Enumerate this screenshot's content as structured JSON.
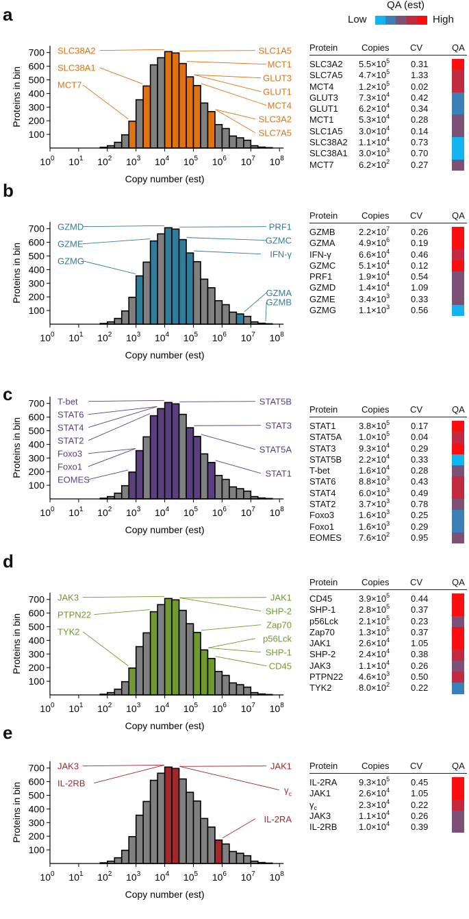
{
  "legend": {
    "title": "QA (est)",
    "low": "Low",
    "high": "High",
    "scale_colors": [
      "#12b3ee",
      "#3d80b8",
      "#7b5276",
      "#c12a3f",
      "#fb0d10"
    ]
  },
  "table_headers": [
    "Protein",
    "Copies",
    "CV",
    "QA"
  ],
  "chart_data": [
    {
      "panel": "a",
      "type": "bar",
      "color": "#e0730f",
      "xlabel": "Copy number (est)",
      "ylabel": "Proteins in bin",
      "x_scale": "log10",
      "xlim": [
        1,
        100000000
      ],
      "ylim": [
        0,
        750
      ],
      "yticks": [
        100,
        200,
        300,
        400,
        500,
        600,
        700
      ],
      "xtick_base": "10",
      "xtick_exponents": [
        "0",
        "1",
        "2",
        "3",
        "4",
        "5",
        "6",
        "7",
        "8"
      ],
      "bin_start_exponent": [
        1.75,
        2,
        2.25,
        2.5,
        2.75,
        3,
        3.25,
        3.5,
        3.75,
        4,
        4.25,
        4.5,
        4.75,
        5,
        5.25,
        5.5,
        5.75,
        6,
        6.25,
        6.5,
        6.75,
        7,
        7.25,
        7.5
      ],
      "counts": [
        5,
        17,
        42,
        97,
        197,
        354,
        455,
        610,
        662,
        707,
        697,
        620,
        522,
        458,
        330,
        267,
        172,
        143,
        88,
        75,
        57,
        17,
        7,
        3
      ],
      "table": [
        {
          "protein": "SLC3A2",
          "m": "5.5×10",
          "e": "5",
          "copies": 550000,
          "cv": "0.31",
          "qa": 5
        },
        {
          "protein": "SLC7A5",
          "m": "4.7×10",
          "e": "5",
          "copies": 470000,
          "cv": "1.33",
          "qa": 4
        },
        {
          "protein": "MCT4",
          "m": "1.2×10",
          "e": "5",
          "copies": 120000,
          "cv": "0.02",
          "qa": 4
        },
        {
          "protein": "GLUT3",
          "m": "7.3×10",
          "e": "4",
          "copies": 73000,
          "cv": "0.42",
          "qa": 2
        },
        {
          "protein": "GLUT1",
          "m": "6.2×10",
          "e": "4",
          "copies": 62000,
          "cv": "0.34",
          "qa": 2
        },
        {
          "protein": "MCT1",
          "m": "5.3×10",
          "e": "4",
          "copies": 53000,
          "cv": "0.28",
          "qa": 3
        },
        {
          "protein": "SLC1A5",
          "m": "3.0×10",
          "e": "4",
          "copies": 30000,
          "cv": "0.14",
          "qa": 3
        },
        {
          "protein": "SLC38A2",
          "m": "1.1×10",
          "e": "4",
          "copies": 11000,
          "cv": "0.73",
          "qa": 1
        },
        {
          "protein": "SLC38A1",
          "m": "3.0×10",
          "e": "3",
          "copies": 3000,
          "cv": "0.70",
          "qa": 1
        },
        {
          "protein": "MCT7",
          "m": "6.2×10",
          "e": "2",
          "copies": 620,
          "cv": "0.27",
          "qa": 3
        }
      ],
      "callouts": {
        "left": [
          7,
          8,
          9
        ],
        "right": [
          6,
          5,
          3,
          4,
          2,
          0,
          1
        ]
      }
    },
    {
      "panel": "b",
      "type": "bar",
      "color": "#2f7f9c",
      "xlabel": "Copy number (est)",
      "ylabel": "Proteins in bin",
      "x_scale": "log10",
      "xlim": [
        1,
        100000000
      ],
      "ylim": [
        0,
        750
      ],
      "yticks": [
        100,
        200,
        300,
        400,
        500,
        600,
        700
      ],
      "xtick_base": "10",
      "xtick_exponents": [
        "0",
        "1",
        "2",
        "3",
        "4",
        "5",
        "6",
        "7",
        "8"
      ],
      "bin_start_exponent": [
        1.75,
        2,
        2.25,
        2.5,
        2.75,
        3,
        3.25,
        3.5,
        3.75,
        4,
        4.25,
        4.5,
        4.75,
        5,
        5.25,
        5.5,
        5.75,
        6,
        6.25,
        6.5,
        6.75,
        7,
        7.25,
        7.5
      ],
      "counts": [
        5,
        17,
        42,
        97,
        197,
        354,
        455,
        610,
        662,
        707,
        697,
        620,
        522,
        458,
        330,
        267,
        172,
        143,
        88,
        75,
        57,
        17,
        7,
        3
      ],
      "table": [
        {
          "protein": "GZMB",
          "m": "2.2×10",
          "e": "7",
          "copies": 22000000,
          "cv": "0.26",
          "qa": 5
        },
        {
          "protein": "GZMA",
          "m": "4.9×10",
          "e": "6",
          "copies": 4900000,
          "cv": "0.19",
          "qa": 5
        },
        {
          "protein": "IFN-γ",
          "m": "6.6×10",
          "e": "4",
          "copies": 66000,
          "cv": "0.46",
          "qa": 4
        },
        {
          "protein": "GZMC",
          "m": "5.1×10",
          "e": "4",
          "copies": 51000,
          "cv": "0.12",
          "qa": 5
        },
        {
          "protein": "PRF1",
          "m": "1.9×10",
          "e": "4",
          "copies": 19000,
          "cv": "0.54",
          "qa": 3
        },
        {
          "protein": "GZMD",
          "m": "1.4×10",
          "e": "4",
          "copies": 14000,
          "cv": "1.09",
          "qa": 3
        },
        {
          "protein": "GZME",
          "m": "3.4×10",
          "e": "3",
          "copies": 3400,
          "cv": "0.33",
          "qa": 3
        },
        {
          "protein": "GZMG",
          "m": "1.1×10",
          "e": "3",
          "copies": 1100,
          "cv": "0.56",
          "qa": 1
        }
      ],
      "callouts": {
        "left": [
          5,
          6,
          7
        ],
        "right": [
          4,
          3,
          2,
          1,
          0
        ]
      }
    },
    {
      "panel": "c",
      "type": "bar",
      "color": "#5b4080",
      "xlabel": "Copy number (est)",
      "ylabel": "Proteins in bin",
      "x_scale": "log10",
      "xlim": [
        1,
        100000000
      ],
      "ylim": [
        0,
        750
      ],
      "yticks": [
        100,
        200,
        300,
        400,
        500,
        600,
        700
      ],
      "xtick_base": "10",
      "xtick_exponents": [
        "0",
        "1",
        "2",
        "3",
        "4",
        "5",
        "6",
        "7",
        "8"
      ],
      "bin_start_exponent": [
        1.75,
        2,
        2.25,
        2.5,
        2.75,
        3,
        3.25,
        3.5,
        3.75,
        4,
        4.25,
        4.5,
        4.75,
        5,
        5.25,
        5.5,
        5.75,
        6,
        6.25,
        6.5,
        6.75,
        7,
        7.25,
        7.5
      ],
      "counts": [
        5,
        17,
        42,
        97,
        197,
        354,
        455,
        610,
        662,
        707,
        697,
        620,
        522,
        458,
        330,
        267,
        172,
        143,
        88,
        75,
        57,
        17,
        7,
        3
      ],
      "table": [
        {
          "protein": "STAT1",
          "m": "3.8×10",
          "e": "5",
          "copies": 380000,
          "cv": "0.17",
          "qa": 5
        },
        {
          "protein": "STAT5A",
          "m": "1.0×10",
          "e": "5",
          "copies": 100000,
          "cv": "0.04",
          "qa": 4
        },
        {
          "protein": "STAT3",
          "m": "9.3×10",
          "e": "4",
          "copies": 93000,
          "cv": "0.29",
          "qa": 5
        },
        {
          "protein": "STAT5B",
          "m": "2.2×10",
          "e": "4",
          "copies": 22000,
          "cv": "0.33",
          "qa": 1
        },
        {
          "protein": "T-bet",
          "m": "1.6×10",
          "e": "4",
          "copies": 16000,
          "cv": "0.28",
          "qa": 3
        },
        {
          "protein": "STAT6",
          "m": "8.8×10",
          "e": "3",
          "copies": 8800,
          "cv": "0.43",
          "qa": 4
        },
        {
          "protein": "STAT4",
          "m": "6.0×10",
          "e": "3",
          "copies": 6000,
          "cv": "0.49",
          "qa": 4
        },
        {
          "protein": "STAT2",
          "m": "3.7×10",
          "e": "3",
          "copies": 3700,
          "cv": "0.78",
          "qa": 3
        },
        {
          "protein": "Foxo3",
          "m": "1.6×10",
          "e": "3",
          "copies": 1600,
          "cv": "0.25",
          "qa": 2
        },
        {
          "protein": "Foxo1",
          "m": "1.6×10",
          "e": "3",
          "copies": 1600,
          "cv": "0.29",
          "qa": 2
        },
        {
          "protein": "EOMES",
          "m": "7.6×10",
          "e": "2",
          "copies": 760,
          "cv": "0.95",
          "qa": 3
        }
      ],
      "callouts": {
        "left": [
          4,
          5,
          6,
          7,
          8,
          9,
          10
        ],
        "right": [
          3,
          2,
          1,
          0
        ]
      }
    },
    {
      "panel": "d",
      "type": "bar",
      "color": "#6f9a2f",
      "xlabel": "Copy number (est)",
      "ylabel": "Proteins in bin",
      "x_scale": "log10",
      "xlim": [
        1,
        100000000
      ],
      "ylim": [
        0,
        750
      ],
      "yticks": [
        100,
        200,
        300,
        400,
        500,
        600,
        700
      ],
      "xtick_base": "10",
      "xtick_exponents": [
        "0",
        "1",
        "2",
        "3",
        "4",
        "5",
        "6",
        "7",
        "8"
      ],
      "bin_start_exponent": [
        1.75,
        2,
        2.25,
        2.5,
        2.75,
        3,
        3.25,
        3.5,
        3.75,
        4,
        4.25,
        4.5,
        4.75,
        5,
        5.25,
        5.5,
        5.75,
        6,
        6.25,
        6.5,
        6.75,
        7,
        7.25,
        7.5
      ],
      "counts": [
        5,
        17,
        42,
        97,
        197,
        354,
        455,
        610,
        662,
        707,
        697,
        620,
        522,
        458,
        330,
        267,
        172,
        143,
        88,
        75,
        57,
        17,
        7,
        3
      ],
      "table": [
        {
          "protein": "CD45",
          "m": "3.9×10",
          "e": "5",
          "copies": 390000,
          "cv": "0.44",
          "qa": 5
        },
        {
          "protein": "SHP-1",
          "m": "2.8×10",
          "e": "5",
          "copies": 280000,
          "cv": "0.37",
          "qa": 5
        },
        {
          "protein": "p56Lck",
          "m": "2.1×10",
          "e": "5",
          "copies": 210000,
          "cv": "0.23",
          "qa": 3
        },
        {
          "protein": "Zap70",
          "m": "1.3×10",
          "e": "5",
          "copies": 130000,
          "cv": "0.37",
          "qa": 5
        },
        {
          "protein": "JAK1",
          "m": "2.6×10",
          "e": "4",
          "copies": 26000,
          "cv": "1.05",
          "qa": 5
        },
        {
          "protein": "SHP-2",
          "m": "2.4×10",
          "e": "4",
          "copies": 24000,
          "cv": "0.38",
          "qa": 4
        },
        {
          "protein": "JAK3",
          "m": "1.1×10",
          "e": "4",
          "copies": 11000,
          "cv": "0.26",
          "qa": 3
        },
        {
          "protein": "PTPN22",
          "m": "4.6×10",
          "e": "3",
          "copies": 4600,
          "cv": "0.50",
          "qa": 4
        },
        {
          "protein": "TYK2",
          "m": "8.0×10",
          "e": "2",
          "copies": 800,
          "cv": "0.22",
          "qa": 2
        }
      ],
      "callouts": {
        "left": [
          6,
          7,
          8
        ],
        "right": [
          4,
          5,
          3,
          2,
          1,
          0
        ]
      }
    },
    {
      "panel": "e",
      "type": "bar",
      "color": "#a3282c",
      "xlabel": "Copy number (est)",
      "ylabel": "Proteins in bin",
      "x_scale": "log10",
      "xlim": [
        1,
        100000000
      ],
      "ylim": [
        0,
        750
      ],
      "yticks": [
        100,
        200,
        300,
        400,
        500,
        600,
        700
      ],
      "xtick_base": "10",
      "xtick_exponents": [
        "0",
        "1",
        "2",
        "3",
        "4",
        "5",
        "6",
        "7",
        "8"
      ],
      "bin_start_exponent": [
        1.75,
        2,
        2.25,
        2.5,
        2.75,
        3,
        3.25,
        3.5,
        3.75,
        4,
        4.25,
        4.5,
        4.75,
        5,
        5.25,
        5.5,
        5.75,
        6,
        6.25,
        6.5,
        6.75,
        7,
        7.25,
        7.5
      ],
      "counts": [
        5,
        17,
        42,
        97,
        197,
        354,
        455,
        610,
        662,
        707,
        697,
        620,
        522,
        458,
        330,
        267,
        172,
        143,
        88,
        75,
        57,
        17,
        7,
        3
      ],
      "table": [
        {
          "protein": "IL-2RA",
          "m": "9.3×10",
          "e": "5",
          "copies": 930000,
          "cv": "0.45",
          "qa": 5
        },
        {
          "protein": "JAK1",
          "m": "2.6×10",
          "e": "4",
          "copies": 26000,
          "cv": "1.05",
          "qa": 5
        },
        {
          "protein": "γ",
          "sub": "c",
          "m": "2.3×10",
          "e": "4",
          "copies": 23000,
          "cv": "0.22",
          "qa": 4
        },
        {
          "protein": "JAK3",
          "m": "1.1×10",
          "e": "4",
          "copies": 11000,
          "cv": "0.26",
          "qa": 3
        },
        {
          "protein": "IL-2RB",
          "m": "1.0×10",
          "e": "4",
          "copies": 10000,
          "cv": "0.39",
          "qa": 3
        }
      ],
      "callouts": {
        "left": [
          3,
          4
        ],
        "right": [
          1,
          2,
          0
        ]
      }
    }
  ]
}
